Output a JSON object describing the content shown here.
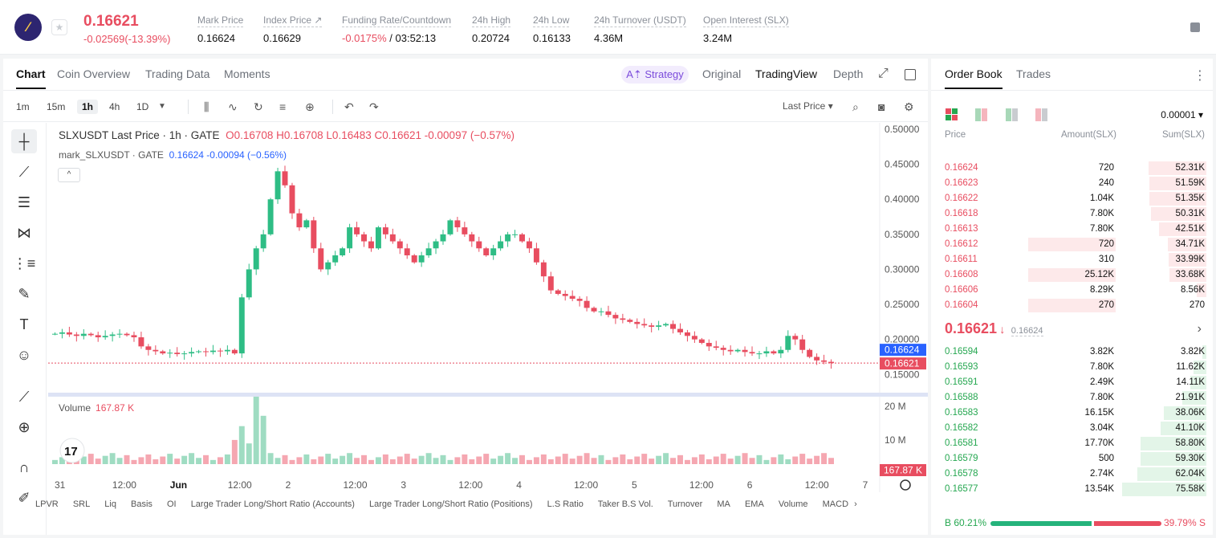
{
  "ticker": {
    "logo_glyph": "⁄",
    "last_price": "0.16621",
    "change": "-0.02569(-13.39%)",
    "stats": [
      {
        "label": "Mark Price",
        "value": "0.16624"
      },
      {
        "label": "Index Price ↗",
        "value": "0.16629"
      },
      {
        "label": "Funding Rate/Countdown",
        "value_red": "-0.0175%",
        "value": " / 03:52:13"
      },
      {
        "label": "24h High",
        "value": "0.20724"
      },
      {
        "label": "24h Low",
        "value": "0.16133"
      },
      {
        "label": "24h Turnover (USDT)",
        "value": "4.36M"
      },
      {
        "label": "Open Interest (SLX)",
        "value": "3.24M"
      }
    ]
  },
  "chart_tabs": {
    "chart": "Chart",
    "coin_overview": "Coin Overview",
    "trading_data": "Trading Data",
    "moments": "Moments",
    "strategy": "A⇡ Strategy",
    "original": "Original",
    "tradingview": "TradingView",
    "depth": "Depth"
  },
  "toolbar": {
    "timeframes": [
      "1m",
      "15m",
      "1h",
      "4h",
      "1D"
    ],
    "selected": "1h",
    "last_price_select": "Last Price ▾"
  },
  "legend": {
    "symbol": "SLXUSDT Last Price · 1h · GATE",
    "ohlc": "O0.16708 H0.16708 L0.16483 C0.16621 -0.00097 (−0.57%)",
    "mark": "mark_SLXUSDT · GATE",
    "mark_vals": "0.16624 -0.00094 (−0.56%)",
    "volume_label": "Volume",
    "volume_value": "167.87 K",
    "collapse": "^"
  },
  "chart_data": {
    "type": "candlestick",
    "symbol": "SLXUSDT",
    "interval": "1h",
    "y_axis_ticks": [
      "0.50000",
      "0.45000",
      "0.40000",
      "0.35000",
      "0.30000",
      "0.25000",
      "0.20000",
      "0.15000"
    ],
    "ylim": [
      0.14,
      0.5
    ],
    "x_axis_ticks": [
      "31",
      "12:00",
      "Jun",
      "12:00",
      "2",
      "12:00",
      "3",
      "12:00",
      "4",
      "12:00",
      "5",
      "12:00",
      "6",
      "12:00",
      "7"
    ],
    "mark_price_label": "0.16624",
    "last_price_label": "0.16621",
    "volume_axis": [
      "20 M",
      "10 M"
    ],
    "volume_last_label": "167.87 K",
    "close_path": [
      [
        0.208,
        0.21,
        0.207,
        0.205,
        0.208,
        0.206,
        0.203,
        0.205,
        0.207,
        0.208,
        0.206,
        0.203,
        0.19,
        0.185,
        0.183,
        0.18,
        0.181,
        0.179,
        0.18,
        0.182,
        0.183,
        0.182,
        0.184,
        0.183,
        0.185
      ],
      [
        0.18,
        0.26,
        0.3,
        0.33,
        0.35,
        0.4,
        0.44,
        0.42,
        0.38,
        0.36,
        0.37,
        0.33,
        0.3,
        0.31,
        0.32,
        0.33,
        0.36,
        0.35,
        0.34,
        0.33,
        0.36,
        0.35,
        0.34,
        0.33,
        0.32,
        0.31,
        0.32,
        0.33,
        0.34,
        0.35,
        0.37,
        0.36,
        0.35,
        0.34,
        0.33,
        0.32,
        0.33,
        0.34,
        0.35,
        0.35,
        0.34
      ],
      [
        0.33,
        0.31,
        0.29,
        0.27,
        0.265,
        0.262,
        0.258,
        0.255,
        0.245,
        0.24,
        0.24,
        0.235,
        0.23,
        0.228,
        0.225,
        0.222,
        0.22,
        0.218,
        0.22,
        0.222,
        0.215,
        0.21,
        0.205,
        0.2,
        0.195,
        0.19,
        0.188,
        0.185,
        0.183,
        0.185,
        0.182,
        0.18,
        0.18,
        0.183,
        0.18,
        0.185,
        0.205,
        0.2,
        0.185,
        0.175,
        0.17,
        0.168,
        0.1662
      ]
    ]
  },
  "bottom_indicators": [
    "LPVR",
    "SRL",
    "Liq",
    "Basis",
    "OI",
    "Large Trader Long/Short Ratio (Accounts)",
    "Large Trader Long/Short Ratio (Positions)",
    "L.S Ratio",
    "Taker B.S Vol.",
    "Turnover",
    "MA",
    "EMA",
    "Volume",
    "MACD"
  ],
  "order_book": {
    "tab_book": "Order Book",
    "tab_trades": "Trades",
    "precision": "0.00001 ▾",
    "col_price": "Price",
    "col_amount": "Amount(SLX)",
    "col_sum": "Sum(SLX)",
    "asks": [
      {
        "price": "0.16624",
        "amount": "720",
        "sum": "52.31K",
        "sum_frac": 0.69,
        "amt_frac": 0.0
      },
      {
        "price": "0.16623",
        "amount": "240",
        "sum": "51.59K",
        "sum_frac": 0.68,
        "amt_frac": 0.0
      },
      {
        "price": "0.16622",
        "amount": "1.04K",
        "sum": "51.35K",
        "sum_frac": 0.68,
        "amt_frac": 0.0
      },
      {
        "price": "0.16618",
        "amount": "7.80K",
        "sum": "50.31K",
        "sum_frac": 0.66,
        "amt_frac": 0.0
      },
      {
        "price": "0.16613",
        "amount": "7.80K",
        "sum": "42.51K",
        "sum_frac": 0.56,
        "amt_frac": 0.0
      },
      {
        "price": "0.16612",
        "amount": "720",
        "sum": "34.71K",
        "sum_frac": 0.46,
        "amt_frac": 0.6
      },
      {
        "price": "0.16611",
        "amount": "310",
        "sum": "33.99K",
        "sum_frac": 0.45,
        "amt_frac": 0.0
      },
      {
        "price": "0.16608",
        "amount": "25.12K",
        "sum": "33.68K",
        "sum_frac": 0.44,
        "amt_frac": 0.6
      },
      {
        "price": "0.16606",
        "amount": "8.29K",
        "sum": "8.56K",
        "sum_frac": 0.11,
        "amt_frac": 0.0
      },
      {
        "price": "0.16604",
        "amount": "270",
        "sum": "270",
        "sum_frac": 0.0,
        "amt_frac": 0.6
      }
    ],
    "mid_price": "0.16621",
    "mid_arrow": "↓",
    "mid_mark": "0.16624",
    "bids": [
      {
        "price": "0.16594",
        "amount": "3.82K",
        "sum": "3.82K",
        "sum_frac": 0.05
      },
      {
        "price": "0.16593",
        "amount": "7.80K",
        "sum": "11.62K",
        "sum_frac": 0.15
      },
      {
        "price": "0.16591",
        "amount": "2.49K",
        "sum": "14.11K",
        "sum_frac": 0.19
      },
      {
        "price": "0.16588",
        "amount": "7.80K",
        "sum": "21.91K",
        "sum_frac": 0.29
      },
      {
        "price": "0.16583",
        "amount": "16.15K",
        "sum": "38.06K",
        "sum_frac": 0.5
      },
      {
        "price": "0.16582",
        "amount": "3.04K",
        "sum": "41.10K",
        "sum_frac": 0.54
      },
      {
        "price": "0.16581",
        "amount": "17.70K",
        "sum": "58.80K",
        "sum_frac": 0.78
      },
      {
        "price": "0.16579",
        "amount": "500",
        "sum": "59.30K",
        "sum_frac": 0.78
      },
      {
        "price": "0.16578",
        "amount": "2.74K",
        "sum": "62.04K",
        "sum_frac": 0.82
      },
      {
        "price": "0.16577",
        "amount": "13.54K",
        "sum": "75.58K",
        "sum_frac": 1.0
      }
    ],
    "buy_ratio": "B 60.21%",
    "sell_ratio": "39.79% S"
  }
}
